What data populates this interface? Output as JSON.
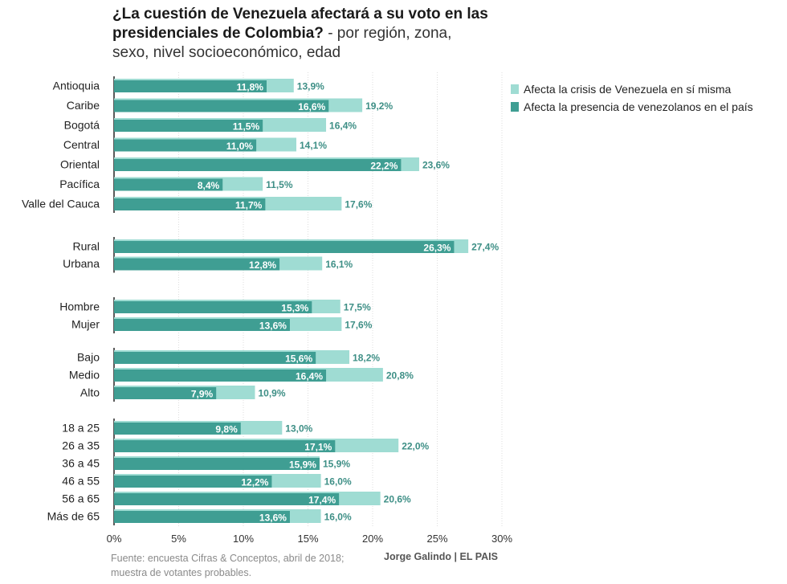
{
  "title": {
    "bold": "¿La cuestión de Venezuela afectará a su voto en las presidenciales de Colombia?",
    "sub": " - por región, zona, sexo, nivel socioeconómico, edad"
  },
  "legend": {
    "crisis": "Afecta la crisis de Venezuela en sí misma",
    "presencia": "Afecta la presencia de venezolanos en el país"
  },
  "colors": {
    "crisis": "#9fdcd3",
    "presencia": "#3f9e93",
    "label": "#3e8f86",
    "grid": "#dddddd",
    "axis": "#222222"
  },
  "footer": {
    "source_line1": "Fuente: encuesta Cifras & Conceptos, abril de 2018;",
    "source_line2": "muestra de votantes probables.",
    "author": "Jorge Galindo | EL PAIS"
  },
  "chart_data": {
    "type": "bar",
    "orientation": "horizontal",
    "xlim": [
      0,
      30
    ],
    "xticks": [
      "0%",
      "5%",
      "10%",
      "15%",
      "20%",
      "25%",
      "30%"
    ],
    "series_names": [
      "Afecta la crisis de Venezuela en sí misma",
      "Afecta la presencia de venezolanos en el país"
    ],
    "groups": [
      {
        "name": "región",
        "rows": [
          {
            "label": "Antioquia",
            "crisis": 13.9,
            "presencia": 11.8,
            "crisis_label": "13,9%",
            "presencia_label": "11,8%"
          },
          {
            "label": "Caribe",
            "crisis": 19.2,
            "presencia": 16.6,
            "crisis_label": "19,2%",
            "presencia_label": "16,6%"
          },
          {
            "label": "Bogotá",
            "crisis": 16.4,
            "presencia": 11.5,
            "crisis_label": "16,4%",
            "presencia_label": "11,5%"
          },
          {
            "label": "Central",
            "crisis": 14.1,
            "presencia": 11.0,
            "crisis_label": "14,1%",
            "presencia_label": "11,0%"
          },
          {
            "label": "Oriental",
            "crisis": 23.6,
            "presencia": 22.2,
            "crisis_label": "23,6%",
            "presencia_label": "22,2%"
          },
          {
            "label": "Pacífica",
            "crisis": 11.5,
            "presencia": 8.4,
            "crisis_label": "11,5%",
            "presencia_label": "8,4%"
          },
          {
            "label": "Valle del Cauca",
            "crisis": 17.6,
            "presencia": 11.7,
            "crisis_label": "17,6%",
            "presencia_label": "11,7%"
          }
        ]
      },
      {
        "name": "zona",
        "rows": [
          {
            "label": "Rural",
            "crisis": 27.4,
            "presencia": 26.3,
            "crisis_label": "27,4%",
            "presencia_label": "26,3%"
          },
          {
            "label": "Urbana",
            "crisis": 16.1,
            "presencia": 12.8,
            "crisis_label": "16,1%",
            "presencia_label": "12,8%"
          }
        ]
      },
      {
        "name": "sexo",
        "rows": [
          {
            "label": "Hombre",
            "crisis": 17.5,
            "presencia": 15.3,
            "crisis_label": "17,5%",
            "presencia_label": "15,3%"
          },
          {
            "label": "Mujer",
            "crisis": 17.6,
            "presencia": 13.6,
            "crisis_label": "17,6%",
            "presencia_label": "13,6%"
          }
        ]
      },
      {
        "name": "nivel socioeconómico",
        "rows": [
          {
            "label": "Bajo",
            "crisis": 18.2,
            "presencia": 15.6,
            "crisis_label": "18,2%",
            "presencia_label": "15,6%"
          },
          {
            "label": "Medio",
            "crisis": 20.8,
            "presencia": 16.4,
            "crisis_label": "20,8%",
            "presencia_label": "16,4%"
          },
          {
            "label": "Alto",
            "crisis": 10.9,
            "presencia": 7.9,
            "crisis_label": "10,9%",
            "presencia_label": "7,9%"
          }
        ]
      },
      {
        "name": "edad",
        "rows": [
          {
            "label": "18 a 25",
            "crisis": 13.0,
            "presencia": 9.8,
            "crisis_label": "13,0%",
            "presencia_label": "9,8%"
          },
          {
            "label": "26 a 35",
            "crisis": 22.0,
            "presencia": 17.1,
            "crisis_label": "22,0%",
            "presencia_label": "17,1%"
          },
          {
            "label": "36 a 45",
            "crisis": 15.9,
            "presencia": 15.9,
            "crisis_label": "15,9%",
            "presencia_label": "15,9%"
          },
          {
            "label": "46 a 55",
            "crisis": 16.0,
            "presencia": 12.2,
            "crisis_label": "16,0%",
            "presencia_label": "12,2%"
          },
          {
            "label": "56 a 65",
            "crisis": 20.6,
            "presencia": 17.4,
            "crisis_label": "20,6%",
            "presencia_label": "17,4%"
          },
          {
            "label": "Más de 65",
            "crisis": 16.0,
            "presencia": 13.6,
            "crisis_label": "16,0%",
            "presencia_label": "13,6%"
          }
        ]
      }
    ]
  }
}
